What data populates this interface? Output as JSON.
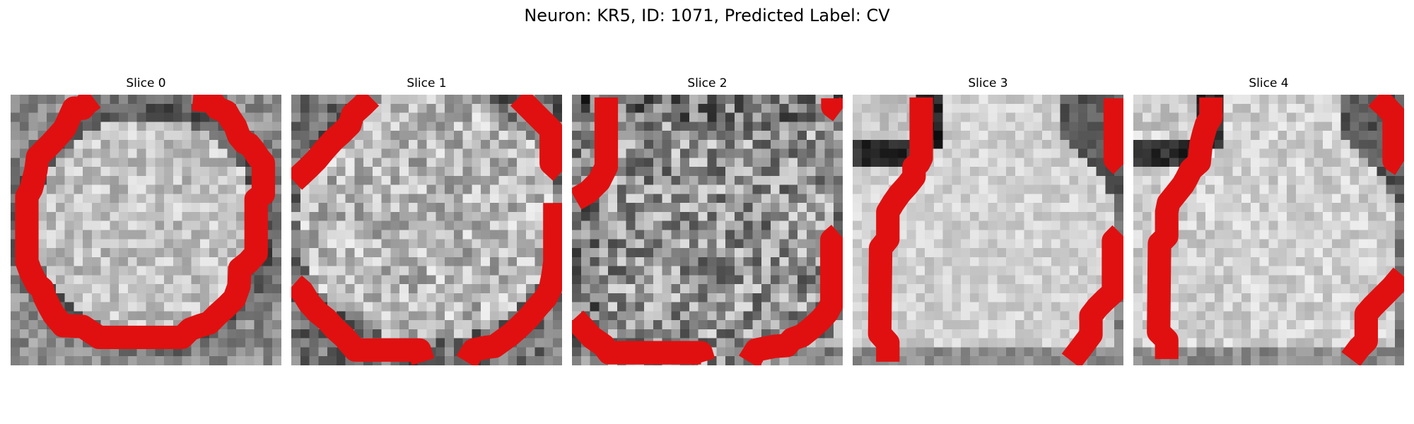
{
  "figure": {
    "title": "Neuron: KR5, ID: 1071, Predicted Label: CV"
  },
  "panels": [
    {
      "title": "Slice 0",
      "dark_ring": "ellipse",
      "noise": 0.16,
      "contour_color": "#e01010"
    },
    {
      "title": "Slice 1",
      "dark_ring": "ellipse-wide",
      "noise": 0.22,
      "contour_color": "#e01010"
    },
    {
      "title": "Slice 2",
      "dark_ring": "faint",
      "noise": 0.3,
      "contour_color": "#e01010"
    },
    {
      "title": "Slice 3",
      "dark_ring": "edge-right",
      "noise": 0.1,
      "contour_color": "#e01010"
    },
    {
      "title": "Slice 4",
      "dark_ring": "edge-right",
      "noise": 0.12,
      "contour_color": "#e01010"
    }
  ],
  "colormap": "grayscale"
}
